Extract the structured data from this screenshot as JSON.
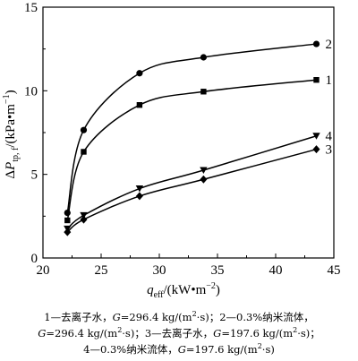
{
  "chart_data": {
    "type": "line",
    "xlabel": "q_eff/(kW·m⁻²)",
    "ylabel": "ΔP_tp,f/(kPa·m⁻¹)",
    "xlim": [
      20,
      45
    ],
    "ylim": [
      0,
      15
    ],
    "xticks": [
      "20",
      "25",
      "30",
      "35",
      "40",
      "45"
    ],
    "yticks": [
      "0",
      "5",
      "10",
      "15"
    ],
    "grid": false,
    "series": [
      {
        "name": "1",
        "marker": "square",
        "x": [
          22.1,
          23.5,
          28.3,
          33.8,
          43.5
        ],
        "y": [
          2.25,
          6.35,
          9.15,
          9.95,
          10.65
        ]
      },
      {
        "name": "2",
        "marker": "circle",
        "x": [
          22.1,
          23.5,
          28.3,
          33.8,
          43.5
        ],
        "y": [
          2.7,
          7.65,
          11.05,
          12.0,
          12.8
        ]
      },
      {
        "name": "3",
        "marker": "diamond",
        "x": [
          22.1,
          23.5,
          28.3,
          33.8,
          43.5
        ],
        "y": [
          1.55,
          2.3,
          3.7,
          4.7,
          6.5
        ]
      },
      {
        "name": "4",
        "marker": "triangle-down",
        "x": [
          22.1,
          23.5,
          28.3,
          33.8,
          43.5
        ],
        "y": [
          1.75,
          2.55,
          4.15,
          5.25,
          7.3
        ]
      }
    ],
    "caption": [
      "1—去离子水，G=296.4 kg/(m²·s)；2—0.3%纳米流体，",
      "G=296.4 kg/(m²·s)；3—去离子水，G=197.6 kg/(m²·s)；",
      "4—0.3%纳米流体，G=197.6 kg/(m²·s)"
    ]
  }
}
